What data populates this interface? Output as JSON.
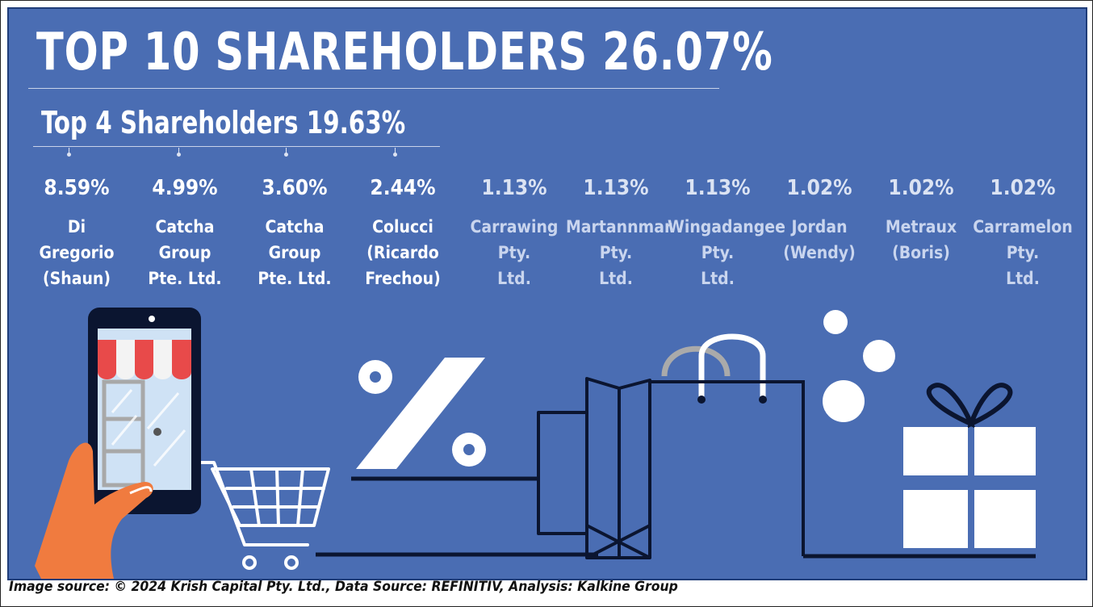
{
  "header": {
    "title": "TOP 10 SHAREHOLDERS 26.07%",
    "subtitle": "Top 4 Shareholders 19.63%"
  },
  "shareholders": [
    {
      "percent": "8.59%",
      "name": "Di\nGregorio\n(Shaun)",
      "top4": true
    },
    {
      "percent": "4.99%",
      "name": "Catcha\nGroup\nPte. Ltd.",
      "top4": true
    },
    {
      "percent": "3.60%",
      "name": "Catcha\nGroup\nPte. Ltd.",
      "top4": true
    },
    {
      "percent": "2.44%",
      "name": "Colucci\n(Ricardo\nFrechou)",
      "top4": true
    },
    {
      "percent": "1.13%",
      "name": "Carrawing\nPty.\nLtd.",
      "top4": false
    },
    {
      "percent": "1.13%",
      "name": "Martannmar\nPty.\nLtd.",
      "top4": false
    },
    {
      "percent": "1.13%",
      "name": "Wingadangee\nPty.\nLtd.",
      "top4": false
    },
    {
      "percent": "1.02%",
      "name": "Jordan\n(Wendy)",
      "top4": false
    },
    {
      "percent": "1.02%",
      "name": "Metraux\n(Boris)",
      "top4": false
    },
    {
      "percent": "1.02%",
      "name": "Carramelon\nPty.\nLtd.",
      "top4": false
    }
  ],
  "illustration": {
    "icons": [
      "smartphone-icon",
      "shop-awning-icon",
      "hand-icon",
      "shopping-cart-icon",
      "percent-icon",
      "shopping-bag-icon",
      "gift-box-icon",
      "bubble-icon"
    ]
  },
  "colors": {
    "background": "#4a6db3",
    "line_art": "#0b1530",
    "hand": "#f07b3f",
    "awning_red": "#e84a4a",
    "screen": "#cfe2f5"
  },
  "footer": {
    "caption": "Image source: © 2024 Krish Capital Pty. Ltd., Data Source: REFINITIV, Analysis: Kalkine Group"
  }
}
